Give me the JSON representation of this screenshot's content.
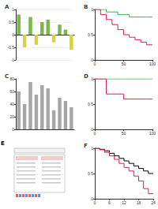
{
  "chart_data": [
    {
      "type": "bar",
      "title": "A",
      "categories": [
        null,
        null,
        null,
        null,
        null,
        null,
        null,
        null,
        null,
        null
      ],
      "values": [
        0.8,
        -0.5,
        0.7,
        -0.4,
        0.5,
        0.6,
        -0.3,
        0.4,
        0.2,
        -0.6
      ],
      "colors": [
        "#7ab648",
        "#d4d44a",
        "#7ab648",
        "#d4d44a",
        "#7ab648",
        "#7ab648",
        "#d4d44a",
        "#7ab648",
        "#7ab648",
        "#d4d44a"
      ],
      "ylim": [
        -1,
        1
      ],
      "yticks": [
        -1,
        -0.5,
        0,
        0.5,
        1
      ],
      "grid": true
    },
    {
      "type": "step",
      "title": "B",
      "x": [
        0,
        10,
        20,
        30,
        40,
        50,
        60,
        70,
        80,
        90,
        100
      ],
      "series": [
        {
          "color": "#3cb44b",
          "values": [
            1,
            1,
            0.95,
            0.95,
            0.9,
            0.9,
            0.85,
            0.85,
            0.85,
            0.85,
            0.85
          ]
        },
        {
          "color": "#e6194b",
          "values": [
            1,
            0.9,
            0.8,
            0.7,
            0.6,
            0.5,
            0.45,
            0.4,
            0.35,
            0.3,
            0.3
          ]
        }
      ],
      "xlim": [
        0,
        100
      ],
      "xticks": [
        0,
        50,
        100
      ],
      "ylim": [
        0,
        1
      ],
      "yticks": [
        0,
        0.5,
        1
      ]
    },
    {
      "type": "bar",
      "title": "C",
      "categories": [
        null,
        null,
        null,
        null,
        null,
        null,
        null,
        null,
        null,
        null
      ],
      "values": [
        60,
        40,
        75,
        55,
        70,
        65,
        30,
        50,
        45,
        35
      ],
      "color": "#a6a6a6",
      "ylim": [
        0,
        80
      ],
      "yticks": [
        0,
        20,
        40,
        60,
        80
      ]
    },
    {
      "type": "step",
      "title": "D",
      "x": [
        0,
        10,
        20,
        30,
        40,
        50,
        60,
        70,
        80,
        90,
        100
      ],
      "series": [
        {
          "color": "#3cb44b",
          "values": [
            1,
            1,
            1,
            1,
            1,
            1,
            1,
            1,
            1,
            1,
            1
          ]
        },
        {
          "color": "#e6194b",
          "values": [
            1,
            1,
            0.7,
            0.7,
            0.7,
            0.6,
            0.6,
            0.6,
            0.6,
            0.6,
            0.6
          ]
        }
      ],
      "xlim": [
        0,
        100
      ],
      "xticks": [
        0,
        50,
        100
      ],
      "ylim": [
        0,
        1
      ],
      "yticks": [
        0,
        0.5,
        1
      ]
    },
    {
      "type": "step",
      "title": "F",
      "x": [
        0,
        2,
        4,
        6,
        8,
        10,
        12,
        14,
        16,
        18,
        20,
        22,
        24
      ],
      "series": [
        {
          "color": "#000000",
          "values": [
            1,
            0.98,
            0.95,
            0.9,
            0.85,
            0.8,
            0.75,
            0.7,
            0.65,
            0.6,
            0.55,
            0.5,
            0.5
          ]
        },
        {
          "color": "#e6194b",
          "values": [
            1,
            0.97,
            0.92,
            0.85,
            0.78,
            0.7,
            0.62,
            0.55,
            0.45,
            0.35,
            0.2,
            0.1,
            0.1
          ]
        }
      ],
      "xlim": [
        0,
        24
      ],
      "xticks": [
        0,
        6,
        12,
        18,
        24
      ],
      "ylim": [
        0,
        1
      ],
      "yticks": [
        0,
        0.5,
        1
      ]
    }
  ],
  "diagram": {
    "title": "E"
  }
}
